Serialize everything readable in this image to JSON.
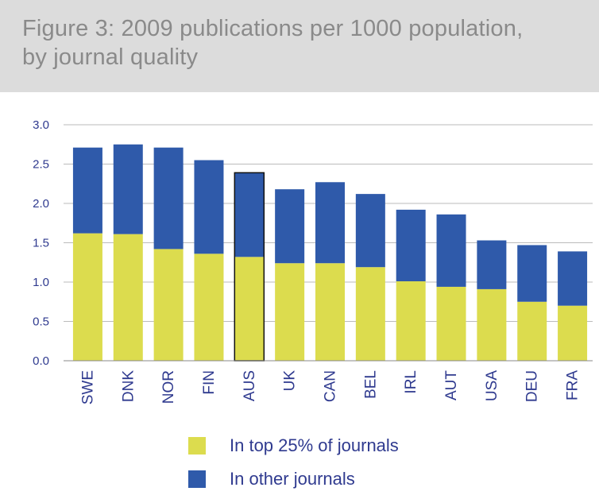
{
  "title": {
    "line1": "Figure  3: 2009 publications per 1000 population,",
    "line2": "by journal quality"
  },
  "colors": {
    "top25": "#dcdc4e",
    "other": "#2f5aaa",
    "axis_text": "#2f3a8f",
    "grid": "#bbbbbb"
  },
  "chart_data": {
    "type": "bar",
    "stacked": true,
    "categories": [
      "SWE",
      "DNK",
      "NOR",
      "FIN",
      "AUS",
      "UK",
      "CAN",
      "BEL",
      "IRL",
      "AUT",
      "USA",
      "DEU",
      "FRA"
    ],
    "series": [
      {
        "name": "In top 25% of journals",
        "values": [
          1.62,
          1.61,
          1.42,
          1.36,
          1.32,
          1.24,
          1.24,
          1.19,
          1.01,
          0.94,
          0.91,
          0.75,
          0.7
        ]
      },
      {
        "name": "In other journals",
        "values": [
          1.09,
          1.14,
          1.29,
          1.19,
          1.07,
          0.94,
          1.03,
          0.93,
          0.91,
          0.92,
          0.62,
          0.72,
          0.69
        ]
      }
    ],
    "highlighted_category": "AUS",
    "yticks": [
      "0.0",
      "0.5",
      "1.0",
      "1.5",
      "2.0",
      "2.5",
      "3.0"
    ],
    "ylim": [
      0,
      3.0
    ],
    "grid": true,
    "legend_position": "bottom"
  }
}
